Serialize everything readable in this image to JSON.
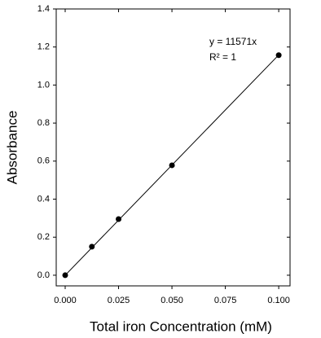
{
  "chart_data": {
    "type": "scatter",
    "x_label": "Total iron Concentration (mM)",
    "y_label": "Absorbance",
    "annotations": [
      "y = 11571x",
      "R² = 1"
    ],
    "x": [
      0,
      0.0125,
      0.025,
      0.05,
      0.1
    ],
    "values": [
      0,
      0.15,
      0.295,
      0.578,
      1.157
    ],
    "color": "#000000",
    "trendline": true,
    "xlim": [
      -0.0042,
      0.1053
    ],
    "ylim": [
      -0.056,
      1.4
    ],
    "xticks": [
      {
        "value": 0,
        "label": "0.000"
      },
      {
        "value": 0.025,
        "label": "0.025"
      },
      {
        "value": 0.05,
        "label": "0.050"
      },
      {
        "value": 0.075,
        "label": "0.075"
      },
      {
        "value": 0.1,
        "label": "0.100"
      }
    ],
    "yticks": [
      {
        "value": 0,
        "label": "0.0"
      },
      {
        "value": 0.2,
        "label": "0.2"
      },
      {
        "value": 0.4,
        "label": "0.4"
      },
      {
        "value": 0.6,
        "label": "0.6"
      },
      {
        "value": 0.8,
        "label": "0.8"
      },
      {
        "value": 1.0,
        "label": "1.0"
      },
      {
        "value": 1.2,
        "label": "1.2"
      },
      {
        "value": 1.4,
        "label": "1.4"
      }
    ]
  }
}
